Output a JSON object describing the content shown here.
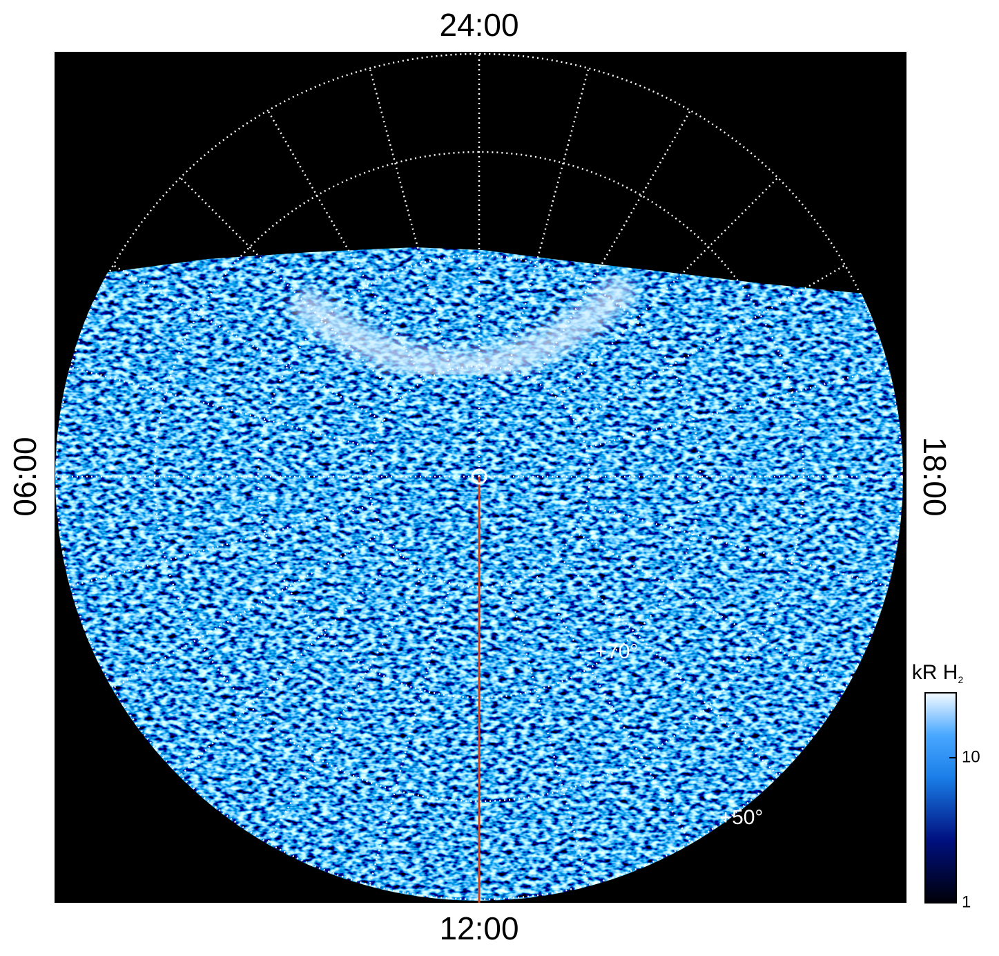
{
  "image": {
    "local_time_labels": {
      "top": "24:00",
      "bottom": "12:00",
      "left": "06:00",
      "right": "18:00"
    },
    "latitude_labels": [
      "+70°",
      "+50°"
    ],
    "colorbar": {
      "title": "kR H",
      "title_subscript": "2",
      "scale": "log",
      "lim": [
        1,
        28
      ],
      "ticks": [
        1,
        10
      ]
    }
  }
}
